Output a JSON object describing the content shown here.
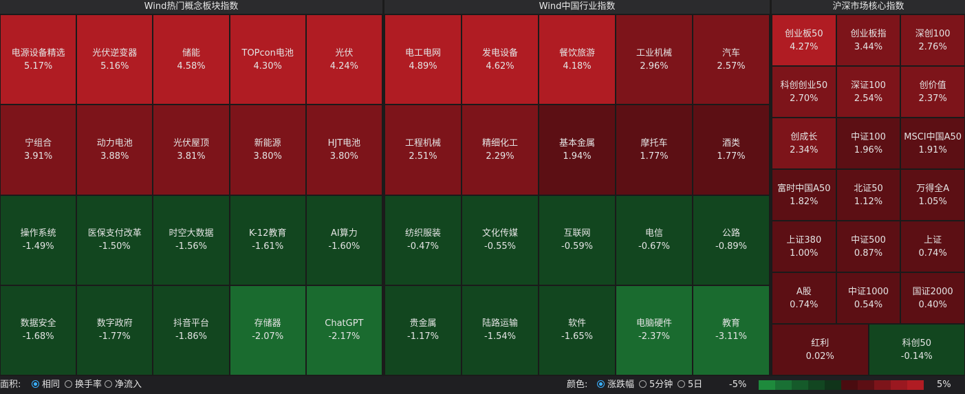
{
  "panels": [
    {
      "title": "Wind热门概念板块指数",
      "tiles": [
        {
          "name": "电源设备精选",
          "change": "5.17%"
        },
        {
          "name": "光伏逆变器",
          "change": "5.16%"
        },
        {
          "name": "储能",
          "change": "4.58%"
        },
        {
          "name": "TOPcon电池",
          "change": "4.30%"
        },
        {
          "name": "光伏",
          "change": "4.24%"
        },
        {
          "name": "宁组合",
          "change": "3.91%"
        },
        {
          "name": "动力电池",
          "change": "3.88%"
        },
        {
          "name": "光伏屋顶",
          "change": "3.81%"
        },
        {
          "name": "新能源",
          "change": "3.80%"
        },
        {
          "name": "HJT电池",
          "change": "3.80%"
        },
        {
          "name": "操作系统",
          "change": "-1.49%"
        },
        {
          "name": "医保支付改革",
          "change": "-1.50%"
        },
        {
          "name": "时空大数据",
          "change": "-1.56%"
        },
        {
          "name": "K-12教育",
          "change": "-1.61%"
        },
        {
          "name": "AI算力",
          "change": "-1.60%"
        },
        {
          "name": "数据安全",
          "change": "-1.68%"
        },
        {
          "name": "数字政府",
          "change": "-1.77%"
        },
        {
          "name": "抖音平台",
          "change": "-1.86%"
        },
        {
          "name": "存储器",
          "change": "-2.07%"
        },
        {
          "name": "ChatGPT",
          "change": "-2.17%"
        }
      ]
    },
    {
      "title": "Wind中国行业指数",
      "tiles": [
        {
          "name": "电工电网",
          "change": "4.89%"
        },
        {
          "name": "发电设备",
          "change": "4.62%"
        },
        {
          "name": "餐饮旅游",
          "change": "4.18%"
        },
        {
          "name": "工业机械",
          "change": "2.96%"
        },
        {
          "name": "汽车",
          "change": "2.57%"
        },
        {
          "name": "工程机械",
          "change": "2.51%"
        },
        {
          "name": "精细化工",
          "change": "2.29%"
        },
        {
          "name": "基本金属",
          "change": "1.94%"
        },
        {
          "name": "摩托车",
          "change": "1.77%"
        },
        {
          "name": "酒类",
          "change": "1.77%"
        },
        {
          "name": "纺织服装",
          "change": "-0.47%"
        },
        {
          "name": "文化传媒",
          "change": "-0.55%"
        },
        {
          "name": "互联网",
          "change": "-0.59%"
        },
        {
          "name": "电信",
          "change": "-0.67%"
        },
        {
          "name": "公路",
          "change": "-0.89%"
        },
        {
          "name": "贵金属",
          "change": "-1.17%"
        },
        {
          "name": "陆路运输",
          "change": "-1.54%"
        },
        {
          "name": "软件",
          "change": "-1.65%"
        },
        {
          "name": "电脑硬件",
          "change": "-2.37%"
        },
        {
          "name": "教育",
          "change": "-3.11%"
        }
      ]
    },
    {
      "title": "沪深市场核心指数",
      "tiles": [
        {
          "name": "创业板50",
          "change": "4.27%"
        },
        {
          "name": "创业板指",
          "change": "3.44%"
        },
        {
          "name": "深创100",
          "change": "2.76%"
        },
        {
          "name": "科创创业50",
          "change": "2.70%"
        },
        {
          "name": "深证100",
          "change": "2.54%"
        },
        {
          "name": "创价值",
          "change": "2.37%"
        },
        {
          "name": "创成长",
          "change": "2.34%"
        },
        {
          "name": "中证100",
          "change": "1.96%"
        },
        {
          "name": "MSCI中国A50",
          "change": "1.91%"
        },
        {
          "name": "富时中国A50",
          "change": "1.82%"
        },
        {
          "name": "北证50",
          "change": "1.12%"
        },
        {
          "name": "万得全A",
          "change": "1.05%"
        },
        {
          "name": "上证380",
          "change": "1.00%"
        },
        {
          "name": "中证500",
          "change": "0.87%"
        },
        {
          "name": "上证",
          "change": "0.74%"
        },
        {
          "name": "A股",
          "change": "0.74%"
        },
        {
          "name": "中证1000",
          "change": "0.54%"
        },
        {
          "name": "国证2000",
          "change": "0.40%"
        },
        {
          "name": "红利",
          "change": "0.02%"
        },
        {
          "name": "科创50",
          "change": "-0.14%"
        }
      ]
    }
  ],
  "footer": {
    "area_label": "面积:",
    "area_options": [
      "相同",
      "换手率",
      "净流入"
    ],
    "color_label": "颜色:",
    "color_options": [
      "涨跌幅",
      "5分钟",
      "5日"
    ],
    "legend_min": "-5%",
    "legend_max": "5%"
  }
}
